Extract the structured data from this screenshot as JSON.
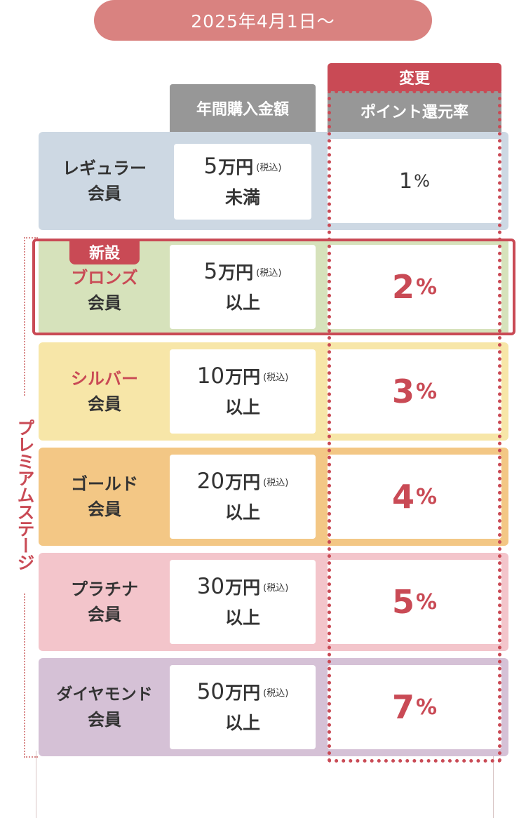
{
  "date_label": "2025年4月1日〜",
  "premium_label": "プレミアムステージ",
  "change_label": "変更",
  "new_label": "新設",
  "headers": {
    "amount": "年間購入金額",
    "rate": "ポイント還元率"
  },
  "tax_note": "(税込)",
  "unit": "万円",
  "percent": "%",
  "colors": {
    "accent": "#c94a55",
    "pill": "#d98280",
    "header_gray": "#979797",
    "regular": "#cdd8e3",
    "bronze": "#d6e2bb",
    "silver": "#f7e6a8",
    "gold": "#f3c785",
    "platinum": "#f3c5cb",
    "diamond": "#d5c1d6"
  },
  "rows": [
    {
      "stage": "レギュラー",
      "member": "会員",
      "amount": "5",
      "condition": "未満",
      "rate": "1"
    },
    {
      "stage": "ブロンズ",
      "member": "会員",
      "amount": "5",
      "condition": "以上",
      "rate": "2"
    },
    {
      "stage": "シルバー",
      "member": "会員",
      "amount": "10",
      "condition": "以上",
      "rate": "3"
    },
    {
      "stage": "ゴールド",
      "member": "会員",
      "amount": "20",
      "condition": "以上",
      "rate": "4"
    },
    {
      "stage": "プラチナ",
      "member": "会員",
      "amount": "30",
      "condition": "以上",
      "rate": "5"
    },
    {
      "stage": "ダイヤモンド",
      "member": "会員",
      "amount": "50",
      "condition": "以上",
      "rate": "7"
    }
  ]
}
